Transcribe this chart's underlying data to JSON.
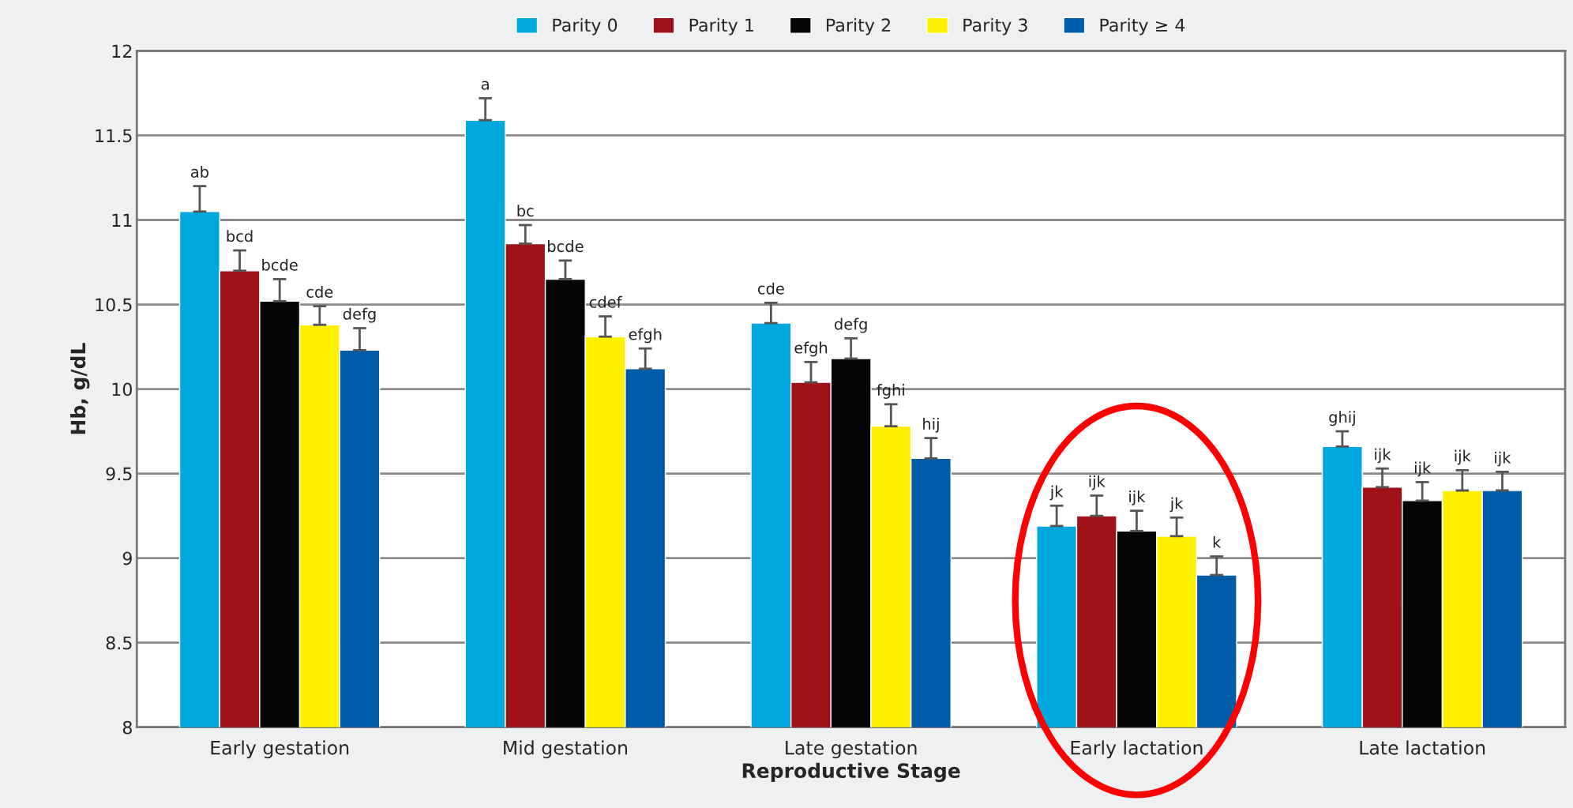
{
  "chart_data": {
    "type": "bar",
    "xlabel": "Reproductive Stage",
    "ylabel": "Hb, g/dL",
    "categories": [
      "Early gestation",
      "Mid gestation",
      "Late gestation",
      "Early lactation",
      "Late lactation"
    ],
    "ylim": [
      8,
      12
    ],
    "yticks": [
      8,
      8.5,
      9,
      9.5,
      10,
      10.5,
      11,
      11.5,
      12
    ],
    "grid": "y",
    "legend": "top",
    "series": [
      {
        "name": "Parity 0",
        "color": "#00a8e0",
        "values": [
          11.05,
          11.59,
          10.39,
          9.19,
          9.66
        ],
        "errors": [
          0.15,
          0.13,
          0.12,
          0.12,
          0.09
        ],
        "value_labels": [
          "ab",
          "a",
          "cde",
          "jk",
          "ghij"
        ]
      },
      {
        "name": "Parity 1",
        "color": "#a11218",
        "values": [
          10.7,
          10.86,
          10.04,
          9.25,
          9.42
        ],
        "errors": [
          0.12,
          0.11,
          0.12,
          0.12,
          0.11
        ],
        "value_labels": [
          "bcd",
          "bc",
          "efgh",
          "ijk",
          "ijk"
        ]
      },
      {
        "name": "Parity 2",
        "color": "#050505",
        "values": [
          10.52,
          10.65,
          10.18,
          9.16,
          9.34
        ],
        "errors": [
          0.13,
          0.11,
          0.12,
          0.12,
          0.11
        ],
        "value_labels": [
          "bcde",
          "bcde",
          "defg",
          "ijk",
          "ijk"
        ]
      },
      {
        "name": "Parity 3",
        "color": "#fff000",
        "values": [
          10.38,
          10.31,
          9.78,
          9.13,
          9.4
        ],
        "errors": [
          0.11,
          0.12,
          0.13,
          0.11,
          0.12
        ],
        "value_labels": [
          "cde",
          "cdef",
          "fghi",
          "jk",
          "ijk"
        ]
      },
      {
        "name": "Parity ≥ 4",
        "color": "#005ca9",
        "values": [
          10.23,
          10.12,
          9.59,
          8.9,
          9.4
        ],
        "errors": [
          0.13,
          0.12,
          0.12,
          0.11,
          0.11
        ],
        "value_labels": [
          "defg",
          "efgh",
          "hij",
          "k",
          "ijk"
        ]
      }
    ]
  }
}
